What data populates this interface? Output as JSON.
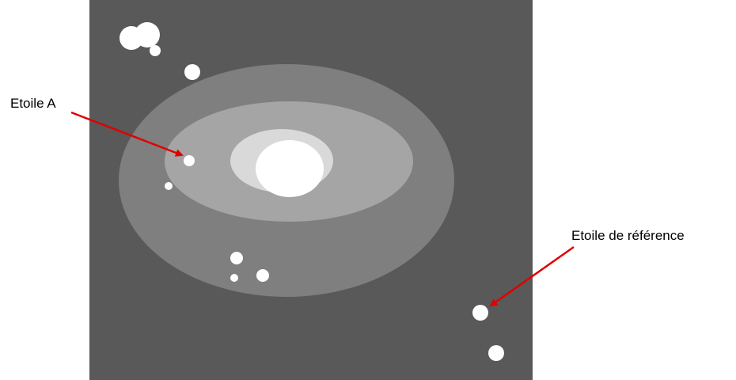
{
  "labels": {
    "star_a": "Etoile A",
    "reference_star": "Etoile de référence"
  }
}
